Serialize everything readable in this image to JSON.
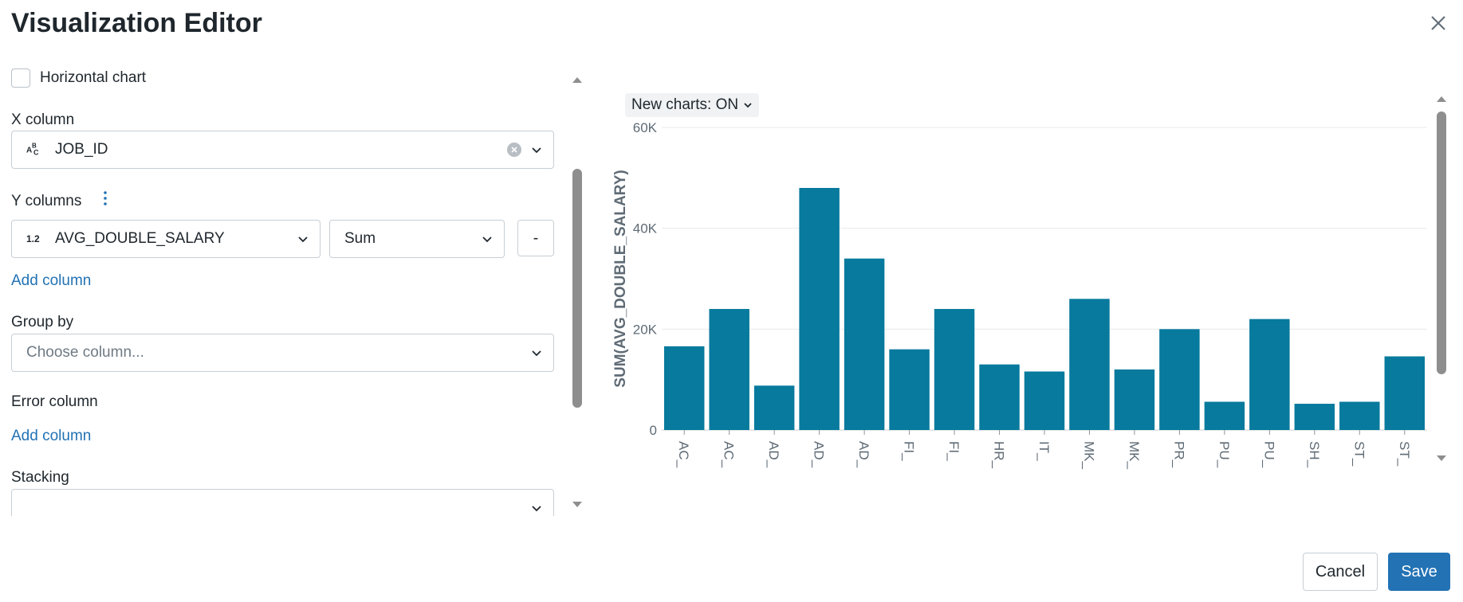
{
  "dialog": {
    "title": "Visualization Editor"
  },
  "editor": {
    "horizontal_chart_label": "Horizontal chart",
    "x_column": {
      "label": "X column",
      "value": "JOB_ID",
      "type_icon": "abc-type-icon"
    },
    "y_columns": {
      "label": "Y columns",
      "column": {
        "value": "AVG_DOUBLE_SALARY",
        "type_icon": "1.2"
      },
      "aggregation": "Sum",
      "remove_label": "-",
      "add_label": "Add column"
    },
    "group_by": {
      "label": "Group by",
      "placeholder": "Choose column..."
    },
    "error_column": {
      "label": "Error column",
      "add_label": "Add column"
    },
    "stacking": {
      "label": "Stacking",
      "value": ""
    }
  },
  "toggle": {
    "label": "New charts: ON"
  },
  "chart_data": {
    "type": "bar",
    "ylabel": "SUM(AVG_DOUBLE_SALARY)",
    "ylim": [
      0,
      60000
    ],
    "yticks": [
      "0",
      "20K",
      "40K",
      "60K"
    ],
    "categories": [
      "AC_",
      "AC_",
      "AD_",
      "AD_",
      "AD_",
      "FI_",
      "FI_",
      "HR_",
      "IT_",
      "MK_",
      "MK_",
      "PR_",
      "PU_",
      "PU_",
      "SH_",
      "ST_",
      "ST_"
    ],
    "values": [
      16600,
      24000,
      8800,
      48000,
      34000,
      16000,
      24000,
      13000,
      11600,
      26000,
      12000,
      20000,
      5600,
      22000,
      5200,
      5600,
      14600
    ],
    "color": "#077a9d",
    "grid": true
  },
  "footer": {
    "cancel_label": "Cancel",
    "save_label": "Save"
  }
}
